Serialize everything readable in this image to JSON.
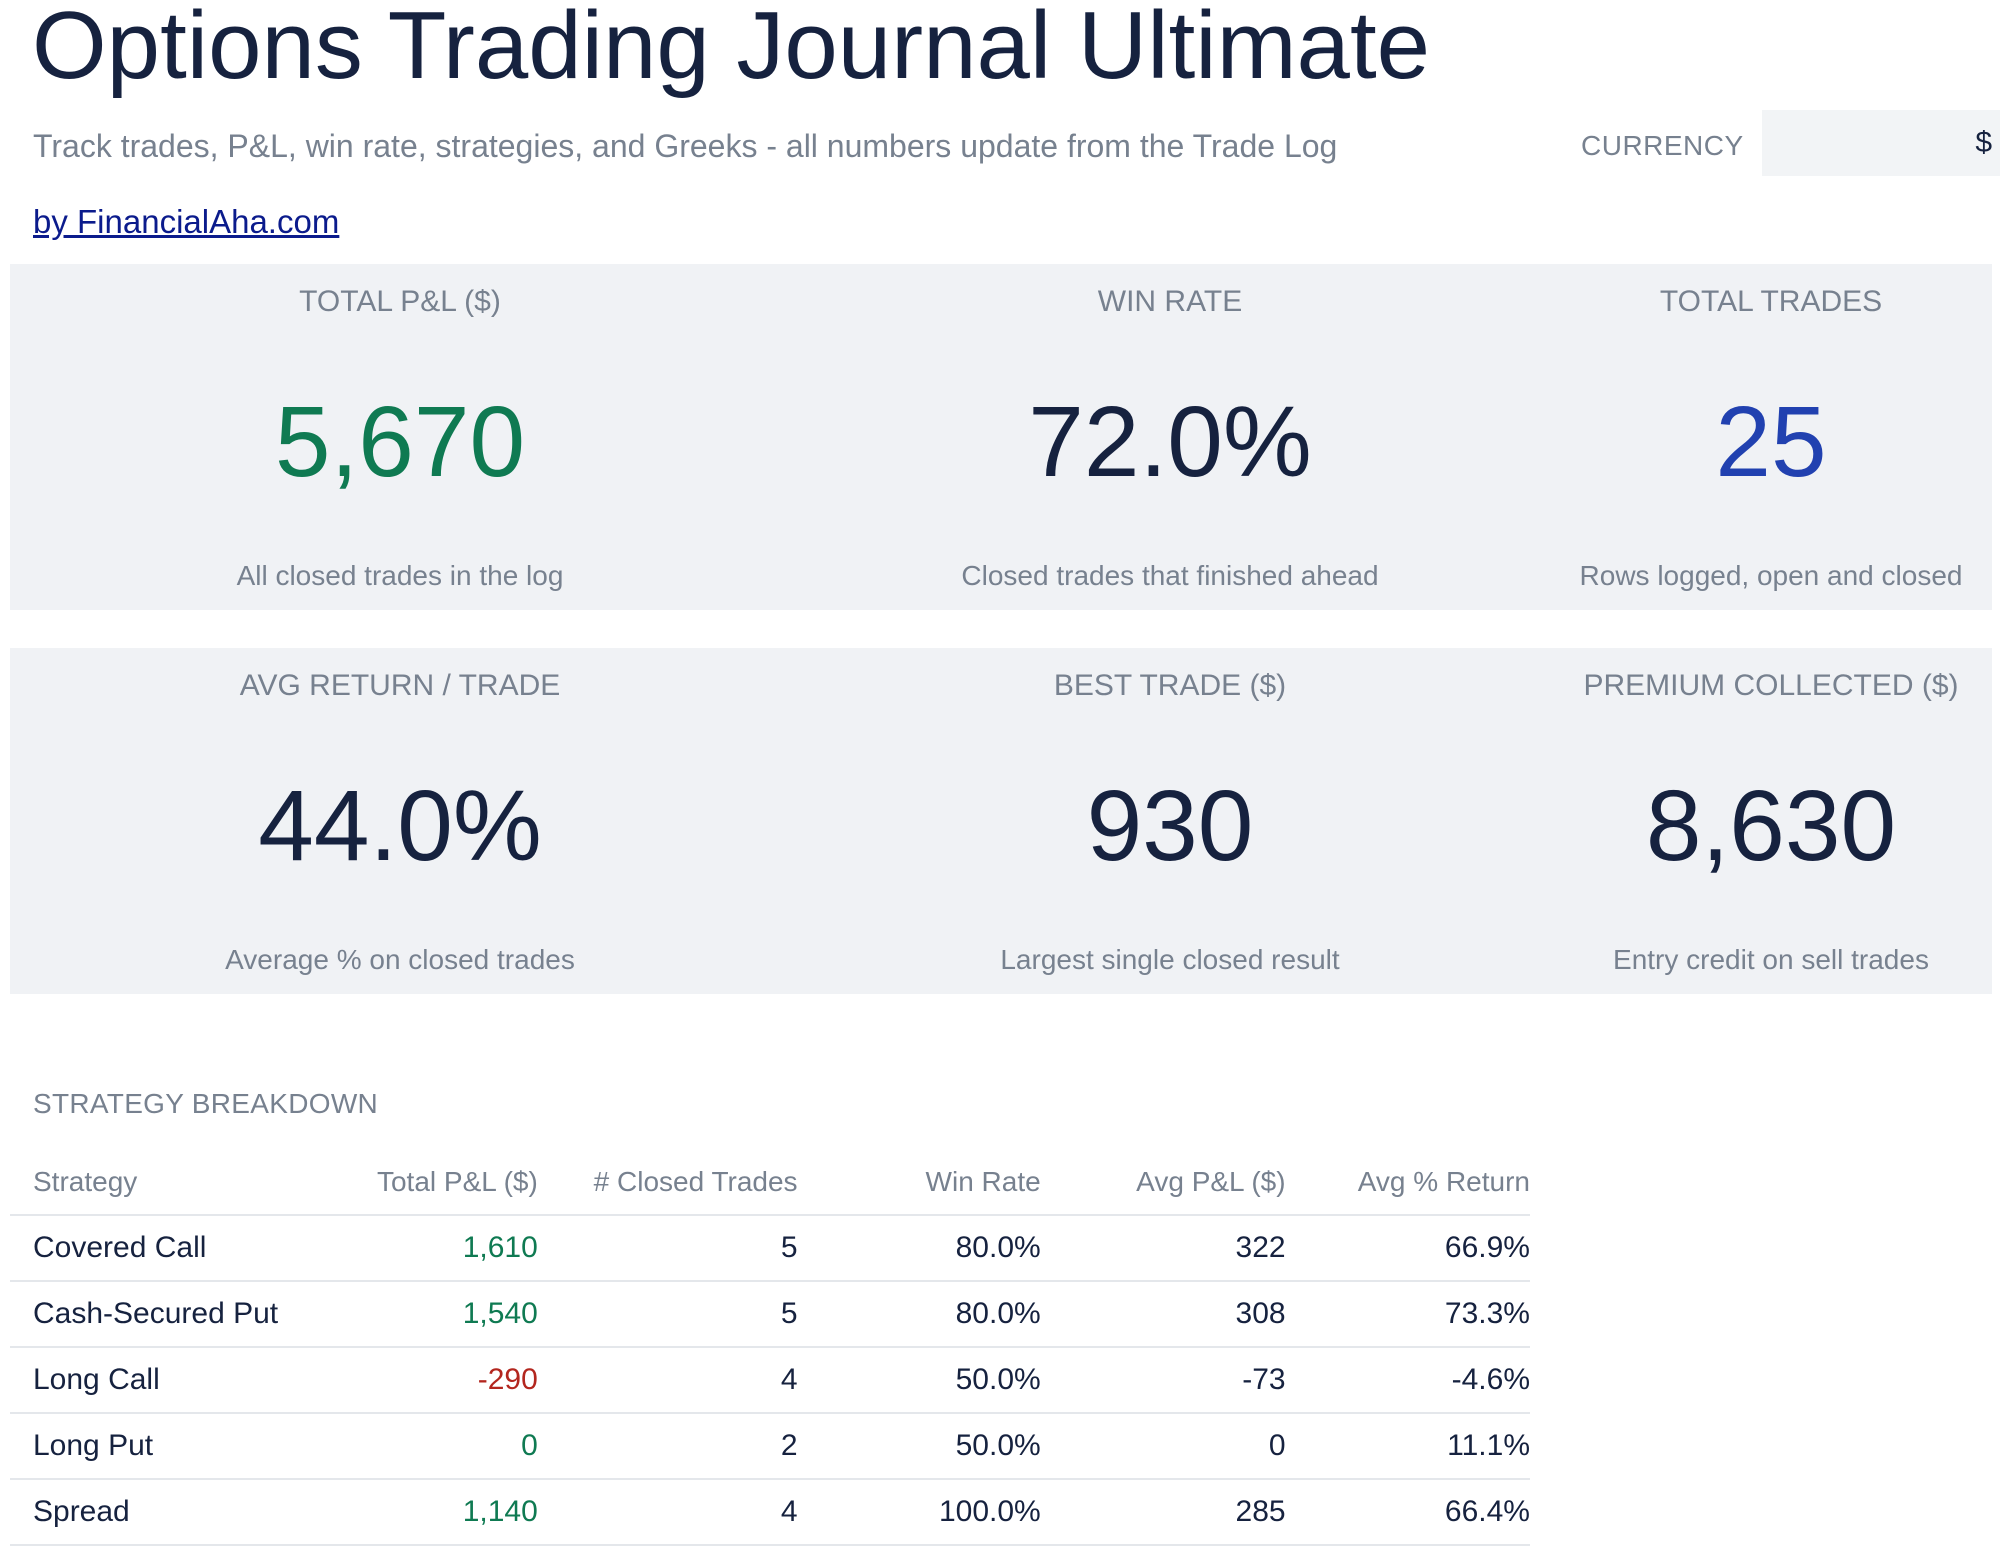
{
  "header": {
    "title": "Options Trading Journal Ultimate",
    "subtitle": "Track trades, P&L, win rate, strategies, and Greeks - all numbers update from the Trade Log",
    "currency_label": "CURRENCY",
    "currency_value": "$",
    "credit_link": "by FinancialAha.com"
  },
  "kpis": [
    {
      "label": "TOTAL P&L ($)",
      "value": "5,670",
      "sub": "All closed trades in the log",
      "color": "#0f7a52"
    },
    {
      "label": "WIN RATE",
      "value": "72.0%",
      "sub": "Closed trades that finished ahead",
      "color": "#16223f"
    },
    {
      "label": "TOTAL TRADES",
      "value": "25",
      "sub": "Rows logged, open and closed",
      "color": "#2141b0"
    },
    {
      "label": "AVG RETURN / TRADE",
      "value": "44.0%",
      "sub": "Average % on closed trades",
      "color": "#16223f"
    },
    {
      "label": "BEST TRADE ($)",
      "value": "930",
      "sub": "Largest single closed result",
      "color": "#16223f"
    },
    {
      "label": "PREMIUM COLLECTED ($)",
      "value": "8,630",
      "sub": "Entry credit on sell trades",
      "color": "#16223f"
    }
  ],
  "strategy": {
    "title": "STRATEGY BREAKDOWN",
    "columns": [
      "Strategy",
      "Total P&L ($)",
      "# Closed Trades",
      "Win Rate",
      "Avg P&L ($)",
      "Avg % Return"
    ],
    "rows": [
      {
        "strategy": "Covered Call",
        "total_pl": "1,610",
        "closed": "5",
        "win_rate": "80.0%",
        "avg_pl": "322",
        "avg_return": "66.9%"
      },
      {
        "strategy": "Cash-Secured Put",
        "total_pl": "1,540",
        "closed": "5",
        "win_rate": "80.0%",
        "avg_pl": "308",
        "avg_return": "73.3%"
      },
      {
        "strategy": "Long Call",
        "total_pl": "-290",
        "closed": "4",
        "win_rate": "50.0%",
        "avg_pl": "-73",
        "avg_return": "-4.6%"
      },
      {
        "strategy": "Long Put",
        "total_pl": "0",
        "closed": "2",
        "win_rate": "50.0%",
        "avg_pl": "0",
        "avg_return": "11.1%"
      },
      {
        "strategy": "Spread",
        "total_pl": "1,140",
        "closed": "4",
        "win_rate": "100.0%",
        "avg_pl": "285",
        "avg_return": "66.4%"
      }
    ]
  }
}
